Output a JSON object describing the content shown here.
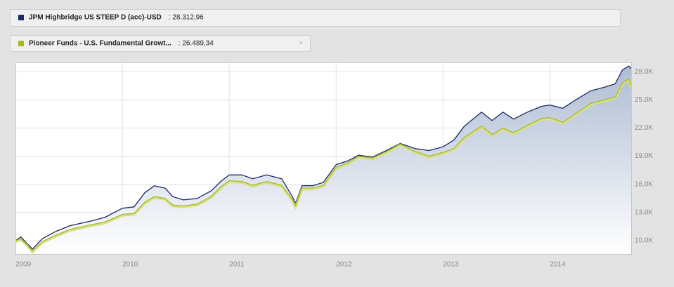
{
  "chart_data": {
    "type": "line",
    "x": [
      2009.0,
      2009.05,
      2009.1,
      2009.16,
      2009.25,
      2009.38,
      2009.51,
      2009.71,
      2009.84,
      2010.0,
      2010.11,
      2010.21,
      2010.3,
      2010.4,
      2010.47,
      2010.57,
      2010.7,
      2010.83,
      2010.93,
      2011.0,
      2011.12,
      2011.22,
      2011.35,
      2011.49,
      2011.59,
      2011.62,
      2011.68,
      2011.78,
      2011.88,
      2012.0,
      2012.11,
      2012.21,
      2012.34,
      2012.47,
      2012.6,
      2012.74,
      2012.87,
      2013.0,
      2013.1,
      2013.2,
      2013.36,
      2013.46,
      2013.56,
      2013.66,
      2013.79,
      2013.92,
      2014.0,
      2014.12,
      2014.25,
      2014.38,
      2014.51,
      2014.61,
      2014.68,
      2014.74,
      2014.76
    ],
    "series": [
      {
        "name": "JPM Highbridge US STEEP D (acc)-USD",
        "last_label": ": 28.312,96",
        "color": "#1b2a66",
        "values": [
          10000,
          10400,
          9800,
          9100,
          10200,
          11000,
          11600,
          12100,
          12500,
          13450,
          13600,
          15100,
          15850,
          15600,
          14700,
          14350,
          14500,
          15300,
          16400,
          17000,
          17000,
          16600,
          17000,
          16600,
          14700,
          14000,
          15850,
          15850,
          16200,
          18100,
          18500,
          19100,
          18900,
          19600,
          20350,
          19800,
          19600,
          20000,
          20700,
          22200,
          23700,
          22800,
          23700,
          22950,
          23700,
          24300,
          24450,
          24100,
          25050,
          25950,
          26350,
          26700,
          28200,
          28600,
          28312.96
        ]
      },
      {
        "name": "Pioneer Funds - U.S. Fundamental Growt...",
        "last_label": ": 26.489,34",
        "color": "#a9ba1c",
        "values": [
          10000,
          10200,
          9700,
          8900,
          9900,
          10600,
          11200,
          11700,
          12000,
          12800,
          12900,
          14100,
          14700,
          14500,
          13800,
          13700,
          13900,
          14700,
          15800,
          16400,
          16300,
          15900,
          16300,
          15900,
          14400,
          13700,
          15600,
          15600,
          15900,
          17800,
          18300,
          19000,
          18800,
          19500,
          20300,
          19500,
          19000,
          19400,
          19800,
          21000,
          22200,
          21300,
          22000,
          21500,
          22300,
          23000,
          23100,
          22600,
          23600,
          24600,
          25000,
          25300,
          26800,
          27200,
          26489.34
        ]
      }
    ],
    "xlim": [
      2009,
      2014.76
    ],
    "xticks": [
      2009,
      2010,
      2011,
      2012,
      2013,
      2014
    ],
    "ylim": [
      8580,
      28980
    ],
    "yticks": [
      {
        "value": 10000,
        "label": "10.0K"
      },
      {
        "value": 13000,
        "label": "13.0K"
      },
      {
        "value": 16000,
        "label": "16.0K"
      },
      {
        "value": 19000,
        "label": "19.0K"
      },
      {
        "value": 22000,
        "label": "22.0K"
      },
      {
        "value": 25000,
        "label": "25.0K"
      },
      {
        "value": 28000,
        "label": "28.0K"
      }
    ],
    "grid": true
  }
}
